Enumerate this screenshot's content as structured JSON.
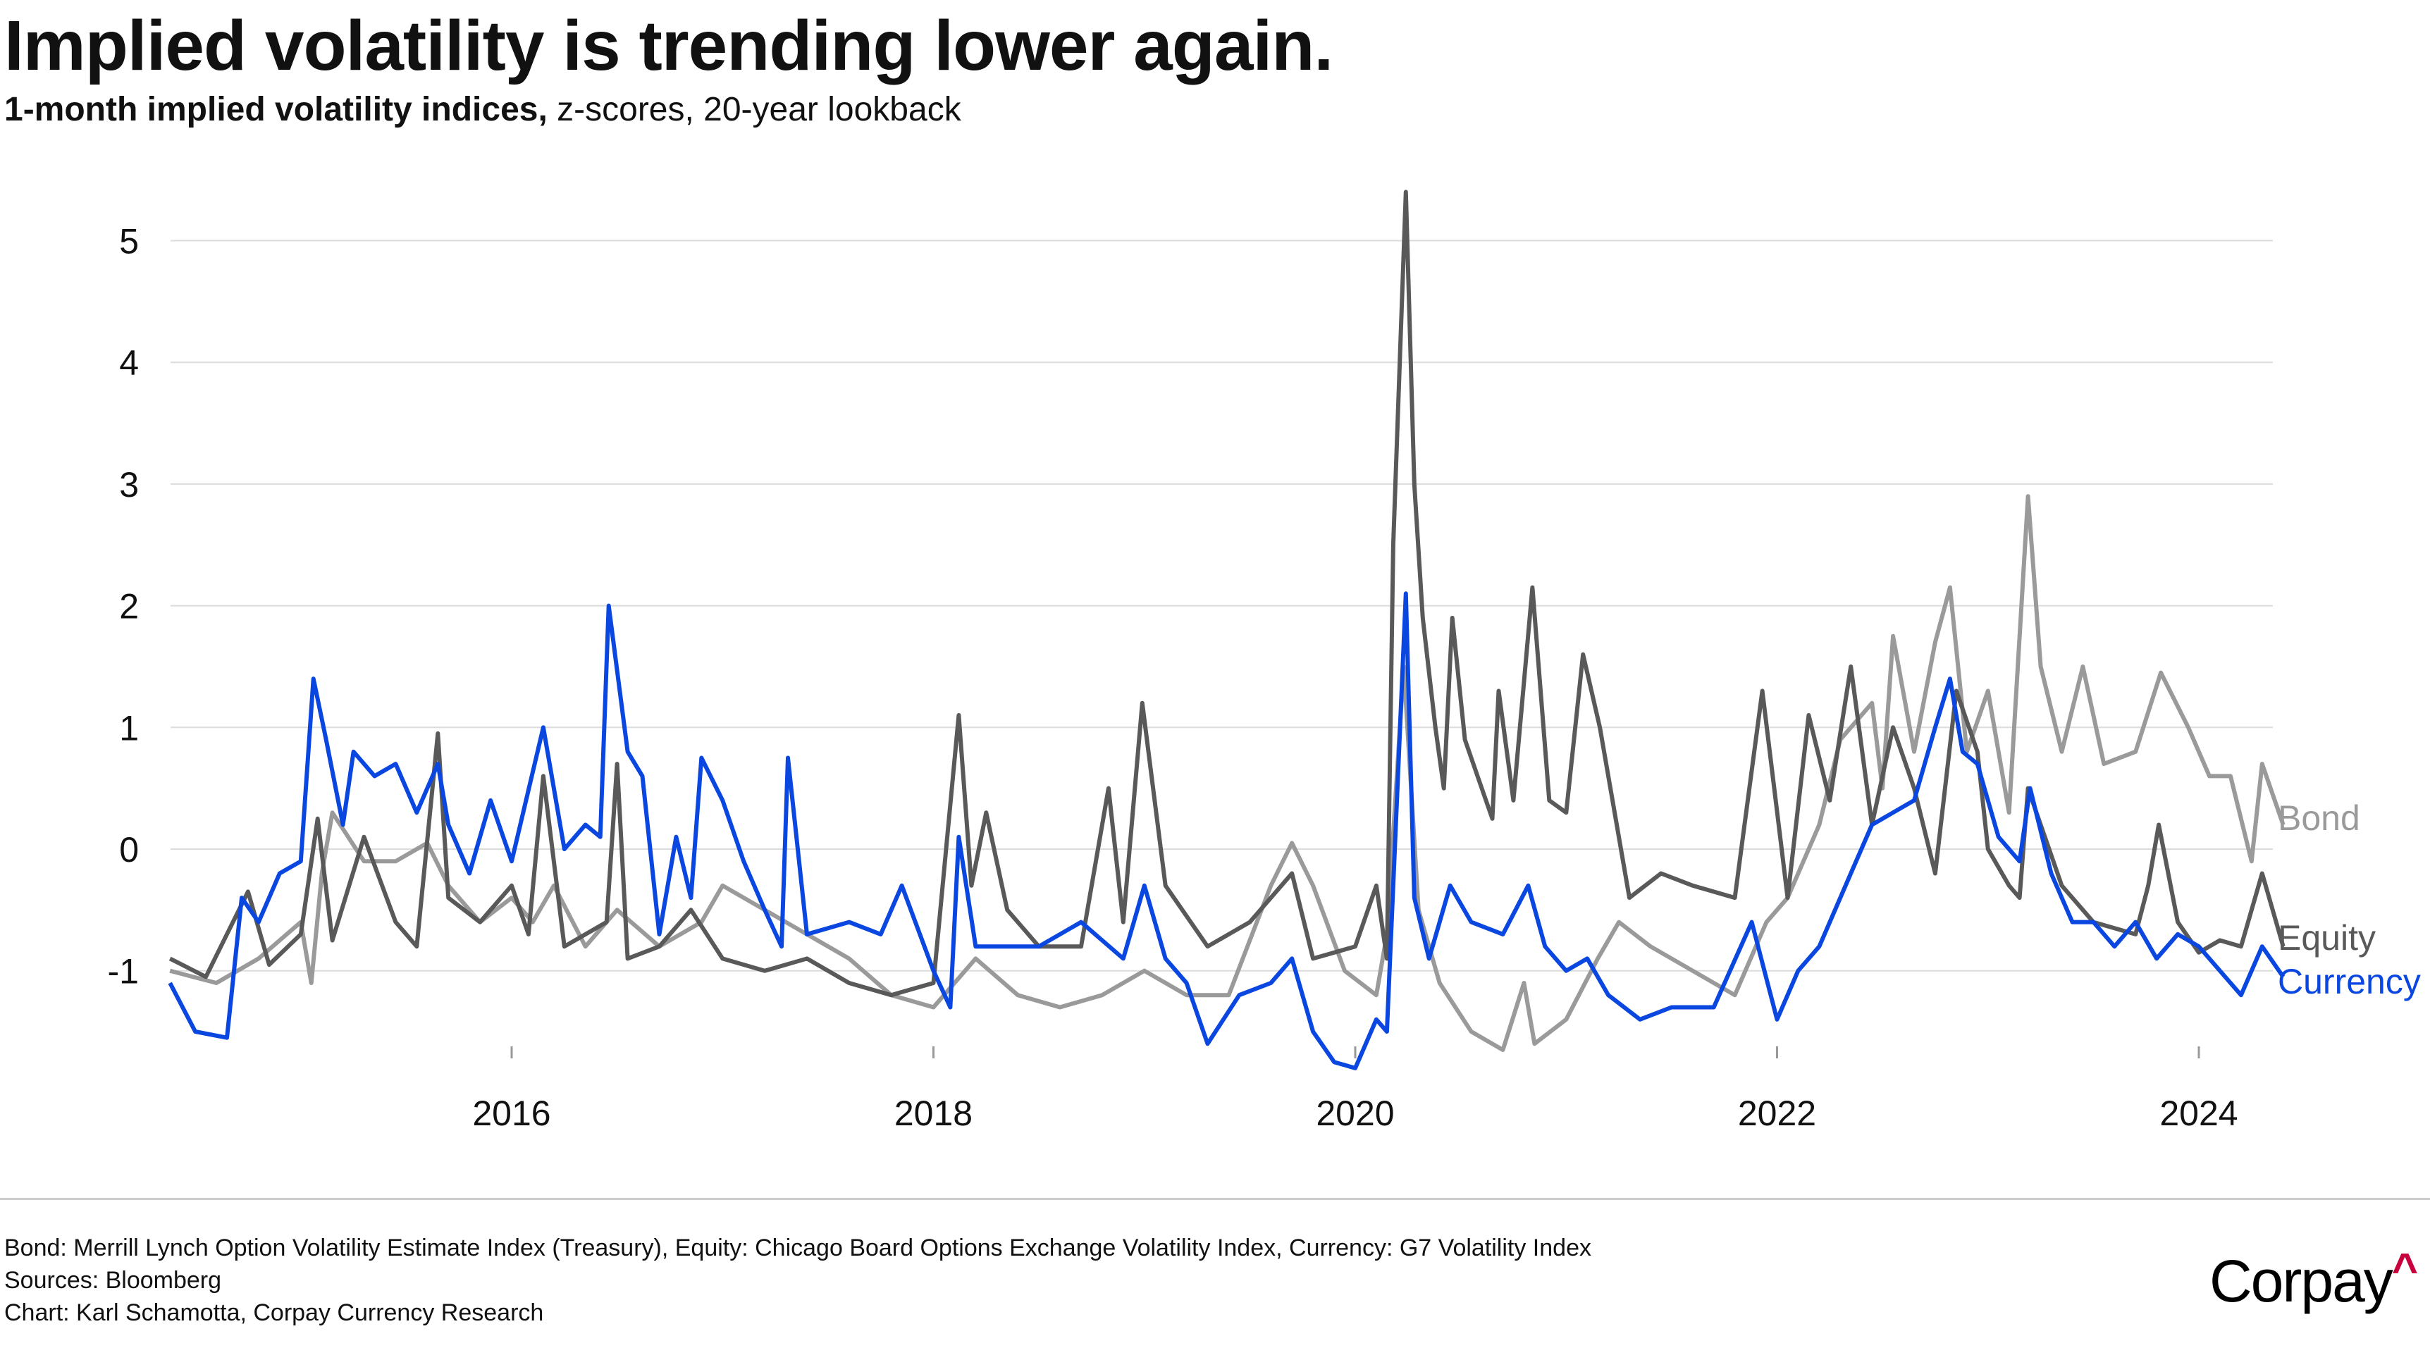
{
  "title": "Implied volatility is trending lower again.",
  "subtitle_bold": "1-month implied volatility indices,",
  "subtitle_rest": " z-scores, 20-year lookback",
  "footer": {
    "note": "Bond: Merrill Lynch Option Volatility Estimate Index (Treasury), Equity: Chicago Board Options Exchange Volatility Index, Currency: G7 Volatility Index",
    "sources": "Sources: Bloomberg",
    "credit": "Chart: Karl Schamotta, Corpay Currency Research"
  },
  "logo": {
    "text": "Corpay",
    "mark": "^",
    "mark_color": "#c8003c"
  },
  "chart_data": {
    "type": "line",
    "title": "Implied volatility is trending lower again.",
    "xlabel": "",
    "ylabel": "",
    "xlim": [
      2014.38,
      2024.4
    ],
    "ylim": [
      -1.9,
      5.5
    ],
    "x_ticks": [
      2016,
      2018,
      2020,
      2022,
      2024
    ],
    "y_ticks": [
      -1,
      0,
      1,
      2,
      3,
      4,
      5
    ],
    "grid": "horizontal",
    "legend": "direct labels at right end",
    "series": [
      {
        "name": "Bond",
        "color": "#9a9a9a",
        "points": [
          [
            2014.38,
            -1.0
          ],
          [
            2014.6,
            -1.1
          ],
          [
            2014.8,
            -0.9
          ],
          [
            2015.0,
            -0.6
          ],
          [
            2015.05,
            -1.1
          ],
          [
            2015.1,
            -0.2
          ],
          [
            2015.15,
            0.3
          ],
          [
            2015.3,
            -0.1
          ],
          [
            2015.45,
            -0.1
          ],
          [
            2015.6,
            0.05
          ],
          [
            2015.7,
            -0.3
          ],
          [
            2015.85,
            -0.6
          ],
          [
            2016.0,
            -0.4
          ],
          [
            2016.1,
            -0.6
          ],
          [
            2016.2,
            -0.3
          ],
          [
            2016.35,
            -0.8
          ],
          [
            2016.5,
            -0.5
          ],
          [
            2016.7,
            -0.8
          ],
          [
            2016.9,
            -0.6
          ],
          [
            2017.0,
            -0.3
          ],
          [
            2017.2,
            -0.5
          ],
          [
            2017.4,
            -0.7
          ],
          [
            2017.6,
            -0.9
          ],
          [
            2017.8,
            -1.2
          ],
          [
            2018.0,
            -1.3
          ],
          [
            2018.2,
            -0.9
          ],
          [
            2018.4,
            -1.2
          ],
          [
            2018.6,
            -1.3
          ],
          [
            2018.8,
            -1.2
          ],
          [
            2019.0,
            -1.0
          ],
          [
            2019.2,
            -1.2
          ],
          [
            2019.4,
            -1.2
          ],
          [
            2019.6,
            -0.3
          ],
          [
            2019.7,
            0.05
          ],
          [
            2019.8,
            -0.3
          ],
          [
            2019.95,
            -1.0
          ],
          [
            2020.1,
            -1.2
          ],
          [
            2020.15,
            -0.7
          ],
          [
            2020.23,
            1.5
          ],
          [
            2020.3,
            -0.5
          ],
          [
            2020.4,
            -1.1
          ],
          [
            2020.55,
            -1.5
          ],
          [
            2020.7,
            -1.65
          ],
          [
            2020.8,
            -1.1
          ],
          [
            2020.85,
            -1.6
          ],
          [
            2021.0,
            -1.4
          ],
          [
            2021.15,
            -0.9
          ],
          [
            2021.25,
            -0.6
          ],
          [
            2021.4,
            -0.8
          ],
          [
            2021.6,
            -1.0
          ],
          [
            2021.8,
            -1.2
          ],
          [
            2021.95,
            -0.6
          ],
          [
            2022.05,
            -0.4
          ],
          [
            2022.2,
            0.2
          ],
          [
            2022.3,
            0.9
          ],
          [
            2022.45,
            1.2
          ],
          [
            2022.5,
            0.5
          ],
          [
            2022.55,
            1.75
          ],
          [
            2022.65,
            0.8
          ],
          [
            2022.75,
            1.7
          ],
          [
            2022.82,
            2.15
          ],
          [
            2022.9,
            0.8
          ],
          [
            2023.0,
            1.3
          ],
          [
            2023.1,
            0.3
          ],
          [
            2023.19,
            2.9
          ],
          [
            2023.25,
            1.5
          ],
          [
            2023.35,
            0.8
          ],
          [
            2023.45,
            1.5
          ],
          [
            2023.55,
            0.7
          ],
          [
            2023.7,
            0.8
          ],
          [
            2023.82,
            1.45
          ],
          [
            2023.95,
            1.0
          ],
          [
            2024.05,
            0.6
          ],
          [
            2024.15,
            0.6
          ],
          [
            2024.25,
            -0.1
          ],
          [
            2024.3,
            0.7
          ],
          [
            2024.4,
            0.2
          ]
        ]
      },
      {
        "name": "Equity",
        "color": "#595959",
        "points": [
          [
            2014.38,
            -0.9
          ],
          [
            2014.55,
            -1.05
          ],
          [
            2014.75,
            -0.35
          ],
          [
            2014.85,
            -0.95
          ],
          [
            2015.0,
            -0.7
          ],
          [
            2015.08,
            0.25
          ],
          [
            2015.15,
            -0.75
          ],
          [
            2015.3,
            0.1
          ],
          [
            2015.45,
            -0.6
          ],
          [
            2015.55,
            -0.8
          ],
          [
            2015.65,
            0.95
          ],
          [
            2015.7,
            -0.4
          ],
          [
            2015.85,
            -0.6
          ],
          [
            2016.0,
            -0.3
          ],
          [
            2016.08,
            -0.7
          ],
          [
            2016.15,
            0.6
          ],
          [
            2016.25,
            -0.8
          ],
          [
            2016.45,
            -0.6
          ],
          [
            2016.5,
            0.7
          ],
          [
            2016.55,
            -0.9
          ],
          [
            2016.7,
            -0.8
          ],
          [
            2016.85,
            -0.5
          ],
          [
            2017.0,
            -0.9
          ],
          [
            2017.2,
            -1.0
          ],
          [
            2017.4,
            -0.9
          ],
          [
            2017.6,
            -1.1
          ],
          [
            2017.8,
            -1.2
          ],
          [
            2018.0,
            -1.1
          ],
          [
            2018.12,
            1.1
          ],
          [
            2018.18,
            -0.3
          ],
          [
            2018.25,
            0.3
          ],
          [
            2018.35,
            -0.5
          ],
          [
            2018.5,
            -0.8
          ],
          [
            2018.7,
            -0.8
          ],
          [
            2018.83,
            0.5
          ],
          [
            2018.9,
            -0.6
          ],
          [
            2018.99,
            1.2
          ],
          [
            2019.1,
            -0.3
          ],
          [
            2019.3,
            -0.8
          ],
          [
            2019.5,
            -0.6
          ],
          [
            2019.7,
            -0.2
          ],
          [
            2019.8,
            -0.9
          ],
          [
            2020.0,
            -0.8
          ],
          [
            2020.1,
            -0.3
          ],
          [
            2020.15,
            -0.9
          ],
          [
            2020.18,
            2.5
          ],
          [
            2020.24,
            5.4
          ],
          [
            2020.28,
            3.0
          ],
          [
            2020.32,
            1.9
          ],
          [
            2020.38,
            1.0
          ],
          [
            2020.42,
            0.5
          ],
          [
            2020.46,
            1.9
          ],
          [
            2020.52,
            0.9
          ],
          [
            2020.6,
            0.5
          ],
          [
            2020.65,
            0.25
          ],
          [
            2020.68,
            1.3
          ],
          [
            2020.75,
            0.4
          ],
          [
            2020.84,
            2.15
          ],
          [
            2020.92,
            0.4
          ],
          [
            2021.0,
            0.3
          ],
          [
            2021.08,
            1.6
          ],
          [
            2021.16,
            1.0
          ],
          [
            2021.3,
            -0.4
          ],
          [
            2021.45,
            -0.2
          ],
          [
            2021.6,
            -0.3
          ],
          [
            2021.8,
            -0.4
          ],
          [
            2021.93,
            1.3
          ],
          [
            2022.05,
            -0.4
          ],
          [
            2022.15,
            1.1
          ],
          [
            2022.25,
            0.4
          ],
          [
            2022.35,
            1.5
          ],
          [
            2022.45,
            0.2
          ],
          [
            2022.55,
            1.0
          ],
          [
            2022.65,
            0.5
          ],
          [
            2022.75,
            -0.2
          ],
          [
            2022.85,
            1.3
          ],
          [
            2022.95,
            0.8
          ],
          [
            2023.0,
            0.0
          ],
          [
            2023.1,
            -0.3
          ],
          [
            2023.15,
            -0.4
          ],
          [
            2023.19,
            0.5
          ],
          [
            2023.35,
            -0.3
          ],
          [
            2023.5,
            -0.6
          ],
          [
            2023.7,
            -0.7
          ],
          [
            2023.76,
            -0.3
          ],
          [
            2023.81,
            0.2
          ],
          [
            2023.9,
            -0.6
          ],
          [
            2024.0,
            -0.85
          ],
          [
            2024.1,
            -0.75
          ],
          [
            2024.2,
            -0.8
          ],
          [
            2024.3,
            -0.2
          ],
          [
            2024.4,
            -0.8
          ]
        ]
      },
      {
        "name": "Currency",
        "color": "#0a46e0",
        "points": [
          [
            2014.38,
            -1.1
          ],
          [
            2014.5,
            -1.5
          ],
          [
            2014.65,
            -1.55
          ],
          [
            2014.72,
            -0.4
          ],
          [
            2014.8,
            -0.6
          ],
          [
            2014.9,
            -0.2
          ],
          [
            2015.0,
            -0.1
          ],
          [
            2015.06,
            1.4
          ],
          [
            2015.12,
            0.9
          ],
          [
            2015.2,
            0.2
          ],
          [
            2015.25,
            0.8
          ],
          [
            2015.35,
            0.6
          ],
          [
            2015.45,
            0.7
          ],
          [
            2015.55,
            0.3
          ],
          [
            2015.65,
            0.7
          ],
          [
            2015.7,
            0.2
          ],
          [
            2015.8,
            -0.2
          ],
          [
            2015.9,
            0.4
          ],
          [
            2016.0,
            -0.1
          ],
          [
            2016.15,
            1.0
          ],
          [
            2016.25,
            0.0
          ],
          [
            2016.35,
            0.2
          ],
          [
            2016.42,
            0.1
          ],
          [
            2016.46,
            2.0
          ],
          [
            2016.55,
            0.8
          ],
          [
            2016.62,
            0.6
          ],
          [
            2016.7,
            -0.7
          ],
          [
            2016.78,
            0.1
          ],
          [
            2016.85,
            -0.4
          ],
          [
            2016.9,
            0.75
          ],
          [
            2017.0,
            0.4
          ],
          [
            2017.1,
            -0.1
          ],
          [
            2017.2,
            -0.5
          ],
          [
            2017.28,
            -0.8
          ],
          [
            2017.31,
            0.75
          ],
          [
            2017.4,
            -0.7
          ],
          [
            2017.6,
            -0.6
          ],
          [
            2017.75,
            -0.7
          ],
          [
            2017.85,
            -0.3
          ],
          [
            2018.0,
            -1.0
          ],
          [
            2018.08,
            -1.3
          ],
          [
            2018.12,
            0.1
          ],
          [
            2018.2,
            -0.8
          ],
          [
            2018.3,
            -0.8
          ],
          [
            2018.5,
            -0.8
          ],
          [
            2018.7,
            -0.6
          ],
          [
            2018.9,
            -0.9
          ],
          [
            2019.0,
            -0.3
          ],
          [
            2019.1,
            -0.9
          ],
          [
            2019.2,
            -1.1
          ],
          [
            2019.3,
            -1.6
          ],
          [
            2019.45,
            -1.2
          ],
          [
            2019.6,
            -1.1
          ],
          [
            2019.7,
            -0.9
          ],
          [
            2019.8,
            -1.5
          ],
          [
            2019.9,
            -1.75
          ],
          [
            2020.0,
            -1.8
          ],
          [
            2020.1,
            -1.4
          ],
          [
            2020.15,
            -1.5
          ],
          [
            2020.24,
            2.1
          ],
          [
            2020.28,
            -0.4
          ],
          [
            2020.35,
            -0.9
          ],
          [
            2020.45,
            -0.3
          ],
          [
            2020.55,
            -0.6
          ],
          [
            2020.7,
            -0.7
          ],
          [
            2020.82,
            -0.3
          ],
          [
            2020.9,
            -0.8
          ],
          [
            2021.0,
            -1.0
          ],
          [
            2021.1,
            -0.9
          ],
          [
            2021.2,
            -1.2
          ],
          [
            2021.35,
            -1.4
          ],
          [
            2021.5,
            -1.3
          ],
          [
            2021.7,
            -1.3
          ],
          [
            2021.88,
            -0.6
          ],
          [
            2022.0,
            -1.4
          ],
          [
            2022.1,
            -1.0
          ],
          [
            2022.2,
            -0.8
          ],
          [
            2022.35,
            -0.2
          ],
          [
            2022.45,
            0.2
          ],
          [
            2022.55,
            0.3
          ],
          [
            2022.65,
            0.4
          ],
          [
            2022.75,
            1.0
          ],
          [
            2022.82,
            1.4
          ],
          [
            2022.88,
            0.8
          ],
          [
            2022.95,
            0.7
          ],
          [
            2023.05,
            0.1
          ],
          [
            2023.15,
            -0.1
          ],
          [
            2023.2,
            0.5
          ],
          [
            2023.3,
            -0.2
          ],
          [
            2023.4,
            -0.6
          ],
          [
            2023.5,
            -0.6
          ],
          [
            2023.6,
            -0.8
          ],
          [
            2023.7,
            -0.6
          ],
          [
            2023.8,
            -0.9
          ],
          [
            2023.9,
            -0.7
          ],
          [
            2024.0,
            -0.8
          ],
          [
            2024.1,
            -1.0
          ],
          [
            2024.2,
            -1.2
          ],
          [
            2024.3,
            -0.8
          ],
          [
            2024.4,
            -1.05
          ]
        ]
      }
    ]
  }
}
